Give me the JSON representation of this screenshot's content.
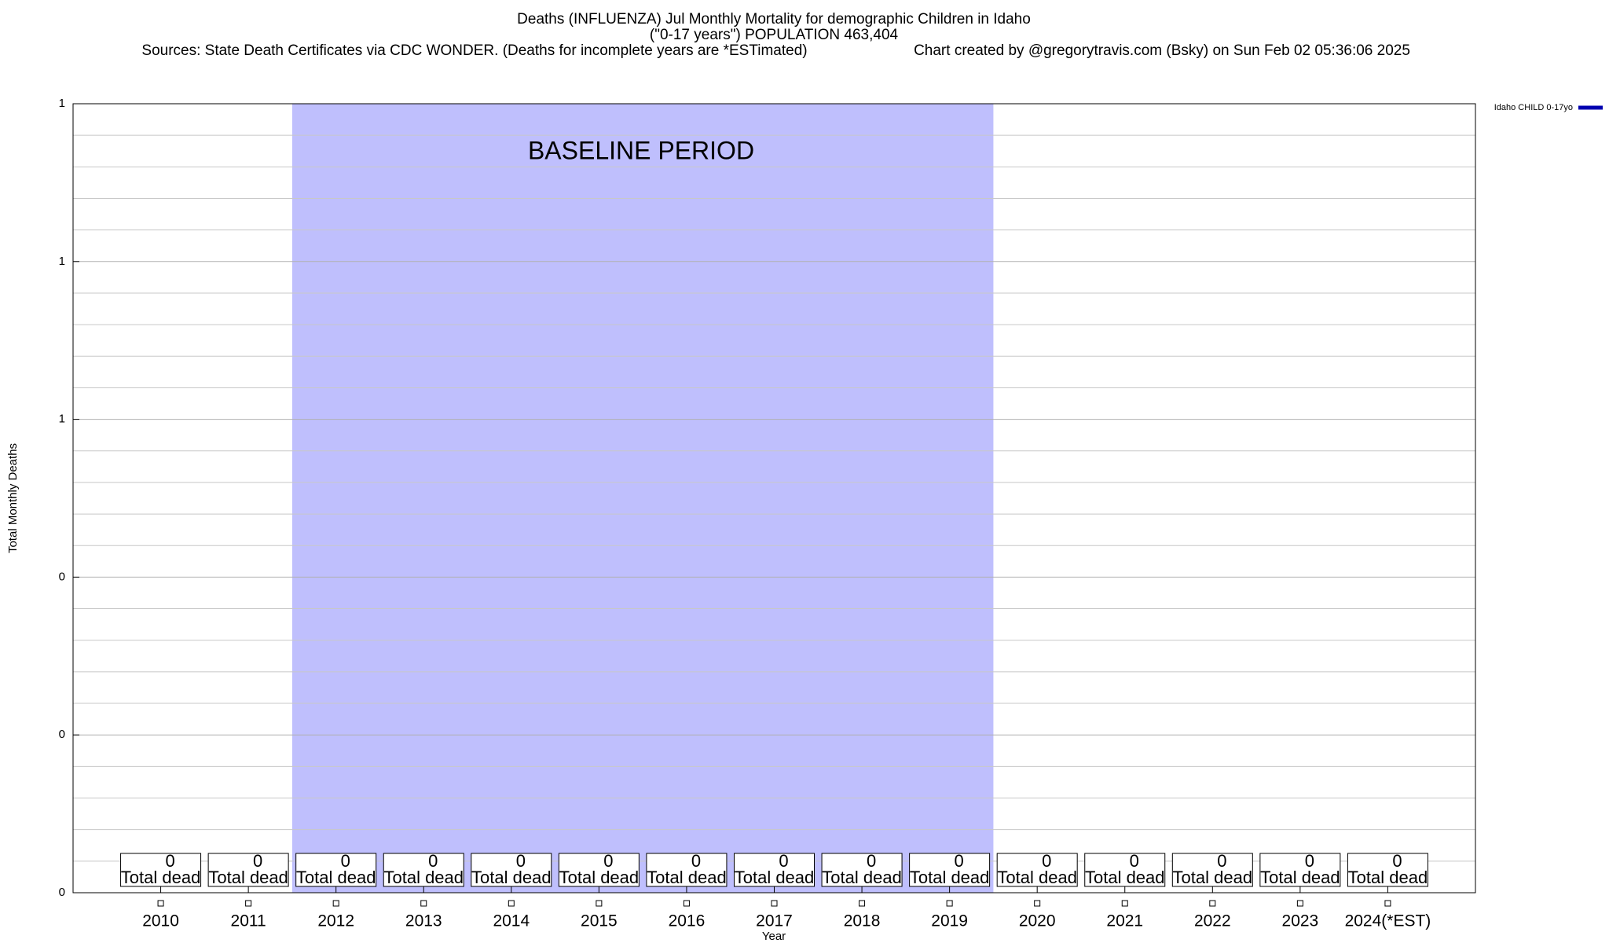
{
  "chart_data": {
    "type": "bar",
    "title": "Deaths (INFLUENZA) Jul Monthly Mortality for demographic Children in Idaho",
    "subtitle": "(\"0-17 years\") POPULATION 463,404",
    "source": "Sources: State Death Certificates via CDC WONDER. (Deaths for incomplete years are *ESTimated)",
    "credit": "Chart created by @gregorytravis.com (Bsky) on Sun Feb 02 05:36:06 2025",
    "x_label": "Year",
    "y_label": "Total Monthly Deaths",
    "categories": [
      "2010",
      "2011",
      "2012",
      "2013",
      "2014",
      "2015",
      "2016",
      "2017",
      "2018",
      "2019",
      "2020",
      "2021",
      "2022",
      "2023",
      "2024(*EST)"
    ],
    "series": [
      {
        "name": "Idaho CHILD 0-17yo",
        "color": "#0000b0",
        "values": [
          0,
          0,
          0,
          0,
          0,
          0,
          0,
          0,
          0,
          0,
          0,
          0,
          0,
          0,
          0
        ]
      }
    ],
    "data_label_text": "Total dead",
    "baseline": {
      "label": "BASELINE PERIOD",
      "start": "2012",
      "end": "2019",
      "color": "#bfbffd"
    },
    "ylim": [
      0,
      1
    ],
    "yticks": [
      {
        "value": 0,
        "label": "0"
      },
      {
        "value": 0.2,
        "label": "0"
      },
      {
        "value": 0.4,
        "label": "0"
      },
      {
        "value": 0.6,
        "label": "1"
      },
      {
        "value": 0.8,
        "label": "1"
      },
      {
        "value": 1,
        "label": "1"
      }
    ],
    "y_minor_ticks": [
      0.04,
      0.08,
      0.12,
      0.16,
      0.24,
      0.28,
      0.32,
      0.36,
      0.44,
      0.48,
      0.52,
      0.56,
      0.64,
      0.68,
      0.72,
      0.76,
      0.84,
      0.88,
      0.92,
      0.96
    ],
    "grid": true,
    "legend": "top-right"
  }
}
